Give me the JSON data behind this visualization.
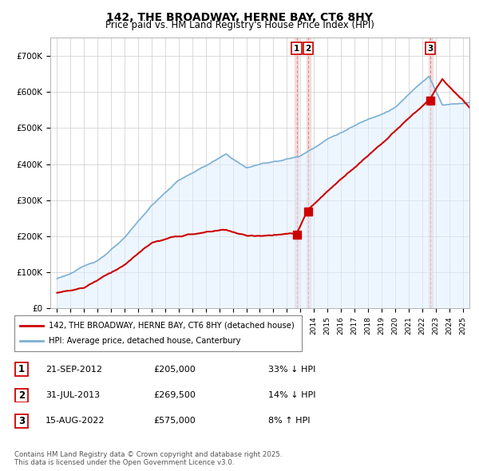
{
  "title": "142, THE BROADWAY, HERNE BAY, CT6 8HY",
  "subtitle": "Price paid vs. HM Land Registry's House Price Index (HPI)",
  "ylim": [
    0,
    750000
  ],
  "yticks": [
    0,
    100000,
    200000,
    300000,
    400000,
    500000,
    600000,
    700000
  ],
  "ytick_labels": [
    "£0",
    "£100K",
    "£200K",
    "£300K",
    "£400K",
    "£500K",
    "£600K",
    "£700K"
  ],
  "xlim_min": 1994.5,
  "xlim_max": 2025.5,
  "sale_dates": [
    2012.72,
    2013.58,
    2022.62
  ],
  "sale_prices": [
    205000,
    269500,
    575000
  ],
  "sale_labels": [
    "1",
    "2",
    "3"
  ],
  "vline_color": "#dd8888",
  "vline_fill_color": "#eecccc",
  "hpi_color": "#7bafd4",
  "hpi_fill_color": "#ddeeff",
  "price_color": "#cc0000",
  "legend_entries": [
    "142, THE BROADWAY, HERNE BAY, CT6 8HY (detached house)",
    "HPI: Average price, detached house, Canterbury"
  ],
  "table_rows": [
    [
      "1",
      "21-SEP-2012",
      "£205,000",
      "33% ↓ HPI"
    ],
    [
      "2",
      "31-JUL-2013",
      "£269,500",
      "14% ↓ HPI"
    ],
    [
      "3",
      "15-AUG-2022",
      "£575,000",
      "8% ↑ HPI"
    ]
  ],
  "footer_text": "Contains HM Land Registry data © Crown copyright and database right 2025.\nThis data is licensed under the Open Government Licence v3.0."
}
